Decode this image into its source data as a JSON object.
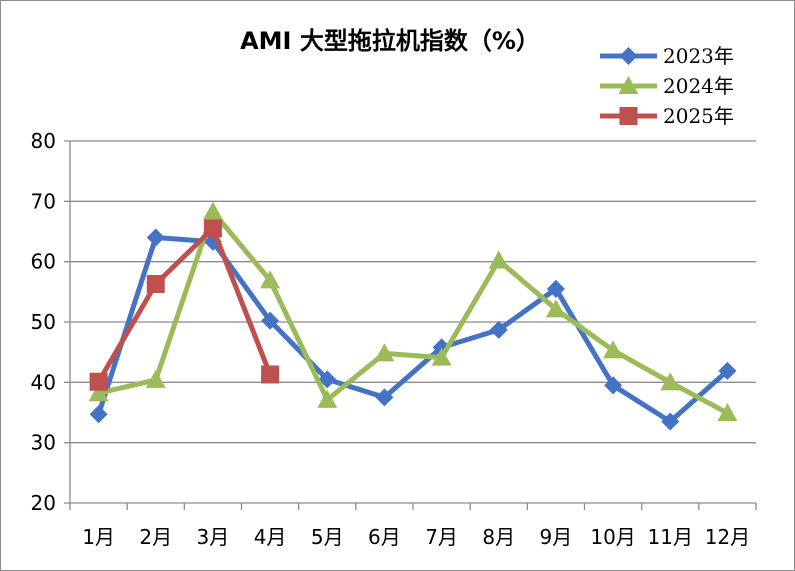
{
  "chart_data": {
    "type": "line",
    "title": "AMI 大型拖拉机指数（%）",
    "xlabel": "",
    "ylabel": "",
    "categories": [
      "1月",
      "2月",
      "3月",
      "4月",
      "5月",
      "6月",
      "7月",
      "8月",
      "9月",
      "10月",
      "11月",
      "12月"
    ],
    "ylim": [
      20,
      80
    ],
    "yticks": [
      20,
      30,
      40,
      50,
      60,
      70,
      80
    ],
    "grid": true,
    "legend": "top-right",
    "series": [
      {
        "name": "2023年",
        "color": "#4472C4",
        "marker": "diamond",
        "values": [
          34.7,
          64.0,
          63.3,
          50.2,
          40.5,
          37.5,
          45.8,
          48.7,
          55.5,
          39.5,
          33.5,
          41.9
        ]
      },
      {
        "name": "2024年",
        "color": "#9BBB59",
        "marker": "triangle",
        "values": [
          38.2,
          40.4,
          68.3,
          56.9,
          37.1,
          44.8,
          44.1,
          60.2,
          52.1,
          45.3,
          40.0,
          34.9
        ]
      },
      {
        "name": "2025年",
        "color": "#C0504D",
        "marker": "square",
        "values": [
          40.1,
          56.3,
          65.5,
          41.3,
          null,
          null,
          null,
          null,
          null,
          null,
          null,
          null
        ]
      }
    ]
  }
}
